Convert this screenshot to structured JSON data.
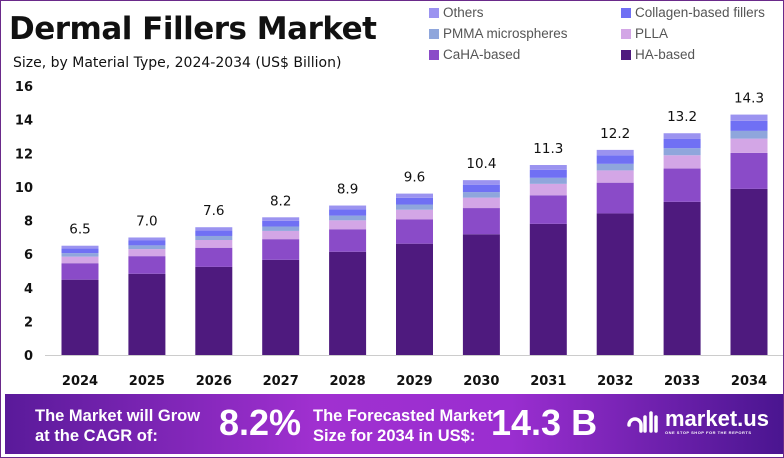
{
  "chart_data": {
    "type": "bar",
    "stacked": true,
    "title": "Dermal Fillers Market",
    "subtitle": "Size, by Material Type, 2024-2034 (US$ Billion)",
    "xlabel": "",
    "ylabel": "",
    "ylim": [
      0,
      16
    ],
    "yticks": [
      0,
      2,
      4,
      6,
      8,
      10,
      12,
      14,
      16
    ],
    "grid": false,
    "legend_position": "top-right",
    "categories": [
      "2024",
      "2025",
      "2026",
      "2027",
      "2028",
      "2029",
      "2030",
      "2031",
      "2032",
      "2033",
      "2034"
    ],
    "totals": [
      "6.5",
      "7.0",
      "7.6",
      "8.2",
      "8.9",
      "9.6",
      "10.4",
      "11.3",
      "12.2",
      "13.2",
      "14.3"
    ],
    "series": [
      {
        "name": "HA-based",
        "color": "#4e1a7e",
        "values": [
          4.48,
          4.83,
          5.24,
          5.66,
          6.14,
          6.62,
          7.18,
          7.8,
          8.42,
          9.11,
          9.88
        ]
      },
      {
        "name": "CaHA-based",
        "color": "#8a4bc8",
        "values": [
          0.98,
          1.05,
          1.14,
          1.23,
          1.34,
          1.44,
          1.56,
          1.7,
          1.83,
          1.98,
          2.14
        ]
      },
      {
        "name": "PLLA",
        "color": "#d3a6e6",
        "values": [
          0.39,
          0.42,
          0.46,
          0.49,
          0.53,
          0.58,
          0.62,
          0.68,
          0.73,
          0.79,
          0.85
        ]
      },
      {
        "name": "PMMA microspheres",
        "color": "#8fa6dc",
        "values": [
          0.21,
          0.22,
          0.24,
          0.26,
          0.28,
          0.31,
          0.33,
          0.36,
          0.39,
          0.42,
          0.46
        ]
      },
      {
        "name": "Collagen-based fillers",
        "color": "#7070f4",
        "values": [
          0.27,
          0.29,
          0.32,
          0.34,
          0.37,
          0.4,
          0.44,
          0.47,
          0.51,
          0.55,
          0.6
        ]
      },
      {
        "name": "Others",
        "color": "#9b93f0",
        "values": [
          0.17,
          0.18,
          0.2,
          0.21,
          0.23,
          0.25,
          0.27,
          0.29,
          0.32,
          0.34,
          0.37
        ]
      }
    ]
  },
  "legend_order": [
    "Others",
    "Collagen-based fillers",
    "PMMA microspheres",
    "PLLA",
    "CaHA-based",
    "HA-based"
  ],
  "banner": {
    "cagr_text_line1": "The Market will Grow",
    "cagr_text_line2": "at the CAGR of:",
    "cagr_value": "8.2%",
    "forecast_text_line1": "The Forecasted Market",
    "forecast_text_line2": "Size for 2034 in US$:",
    "forecast_value": "14.3 B",
    "logo": "market.us",
    "logo_tagline": "ONE STOP SHOP FOR THE REPORTS"
  }
}
